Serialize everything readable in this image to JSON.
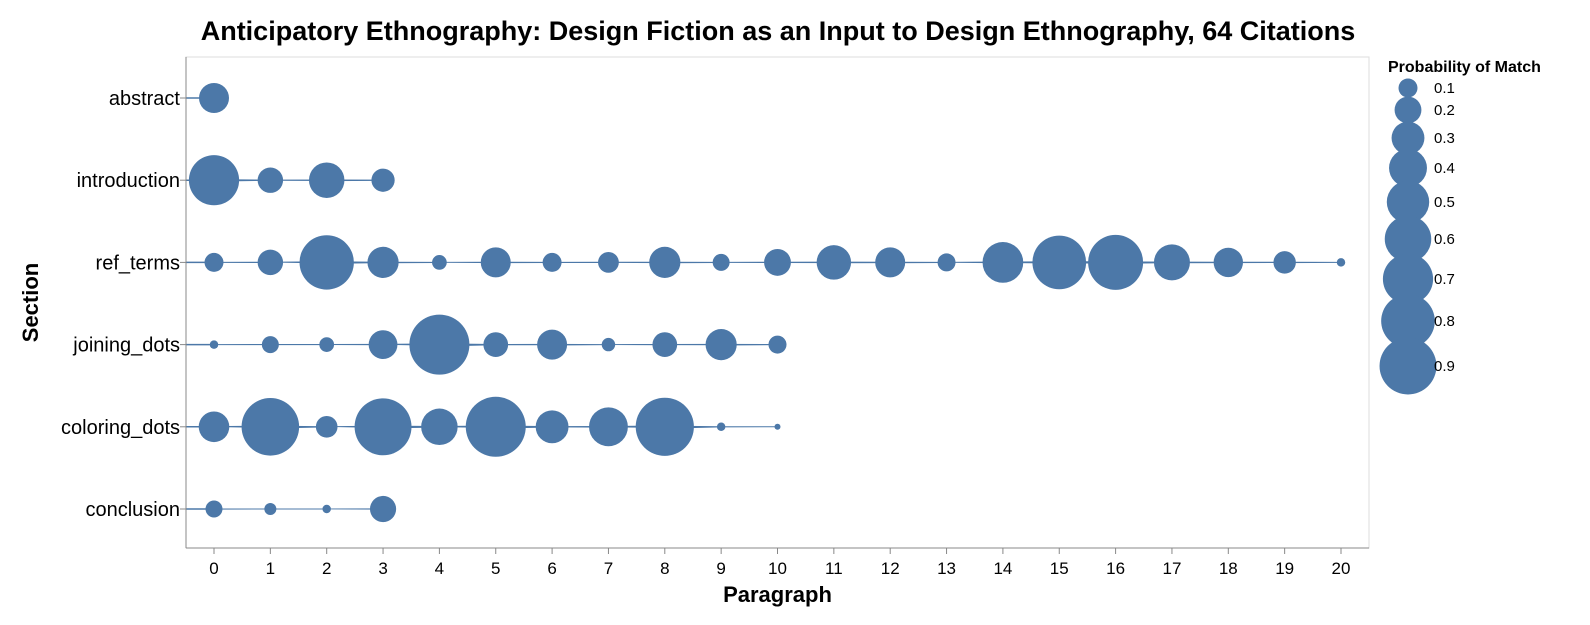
{
  "chart_data": {
    "type": "scatter",
    "title": "Anticipatory Ethnography: Design Fiction as an Input to Design Ethnography, 64 Citations",
    "xlabel": "Paragraph",
    "ylabel": "Section",
    "x_ticks": [
      "0",
      "1",
      "2",
      "3",
      "4",
      "5",
      "6",
      "7",
      "8",
      "9",
      "10",
      "11",
      "12",
      "13",
      "14",
      "15",
      "16",
      "17",
      "18",
      "19",
      "20"
    ],
    "xlim": [
      0,
      20
    ],
    "categories": [
      "abstract",
      "introduction",
      "ref_terms",
      "joining_dots",
      "coloring_dots",
      "conclusion"
    ],
    "size_legend": {
      "title": "Probability of Match",
      "values": [
        0.1,
        0.2,
        0.3,
        0.4,
        0.5,
        0.6,
        0.7,
        0.8,
        0.9
      ],
      "labels": [
        "0.1",
        "0.2",
        "0.3",
        "0.4",
        "0.5",
        "0.6",
        "0.7",
        "0.8",
        "0.9"
      ]
    },
    "grid": false,
    "legend_position": "right",
    "colors": {
      "point": "#4c78a8",
      "line": "#4c78a8",
      "axis": "#888888"
    },
    "series": [
      {
        "section": "abstract",
        "points": [
          [
            0,
            0.25
          ]
        ]
      },
      {
        "section": "introduction",
        "points": [
          [
            0,
            0.7
          ],
          [
            1,
            0.18
          ],
          [
            2,
            0.35
          ],
          [
            3,
            0.15
          ]
        ]
      },
      {
        "section": "ref_terms",
        "points": [
          [
            0,
            0.1
          ],
          [
            1,
            0.18
          ],
          [
            2,
            0.82
          ],
          [
            3,
            0.27
          ],
          [
            4,
            0.06
          ],
          [
            5,
            0.25
          ],
          [
            6,
            0.1
          ],
          [
            7,
            0.12
          ],
          [
            8,
            0.27
          ],
          [
            9,
            0.08
          ],
          [
            10,
            0.2
          ],
          [
            11,
            0.33
          ],
          [
            12,
            0.25
          ],
          [
            13,
            0.09
          ],
          [
            14,
            0.46
          ],
          [
            15,
            0.8
          ],
          [
            16,
            0.84
          ],
          [
            17,
            0.36
          ],
          [
            18,
            0.24
          ],
          [
            19,
            0.14
          ],
          [
            20,
            0.02
          ]
        ]
      },
      {
        "section": "joining_dots",
        "points": [
          [
            0,
            0.02
          ],
          [
            1,
            0.08
          ],
          [
            2,
            0.06
          ],
          [
            3,
            0.23
          ],
          [
            4,
            1.0
          ],
          [
            5,
            0.17
          ],
          [
            6,
            0.25
          ],
          [
            7,
            0.05
          ],
          [
            8,
            0.17
          ],
          [
            9,
            0.27
          ],
          [
            10,
            0.09
          ]
        ]
      },
      {
        "section": "coloring_dots",
        "points": [
          [
            0,
            0.26
          ],
          [
            1,
            0.92
          ],
          [
            2,
            0.13
          ],
          [
            3,
            0.9
          ],
          [
            4,
            0.37
          ],
          [
            5,
            1.0
          ],
          [
            6,
            0.3
          ],
          [
            7,
            0.42
          ],
          [
            8,
            0.94
          ],
          [
            9,
            0.02
          ],
          [
            10,
            0.01
          ]
        ]
      },
      {
        "section": "conclusion",
        "points": [
          [
            0,
            0.08
          ],
          [
            1,
            0.04
          ],
          [
            2,
            0.02
          ],
          [
            3,
            0.19
          ]
        ]
      }
    ]
  }
}
